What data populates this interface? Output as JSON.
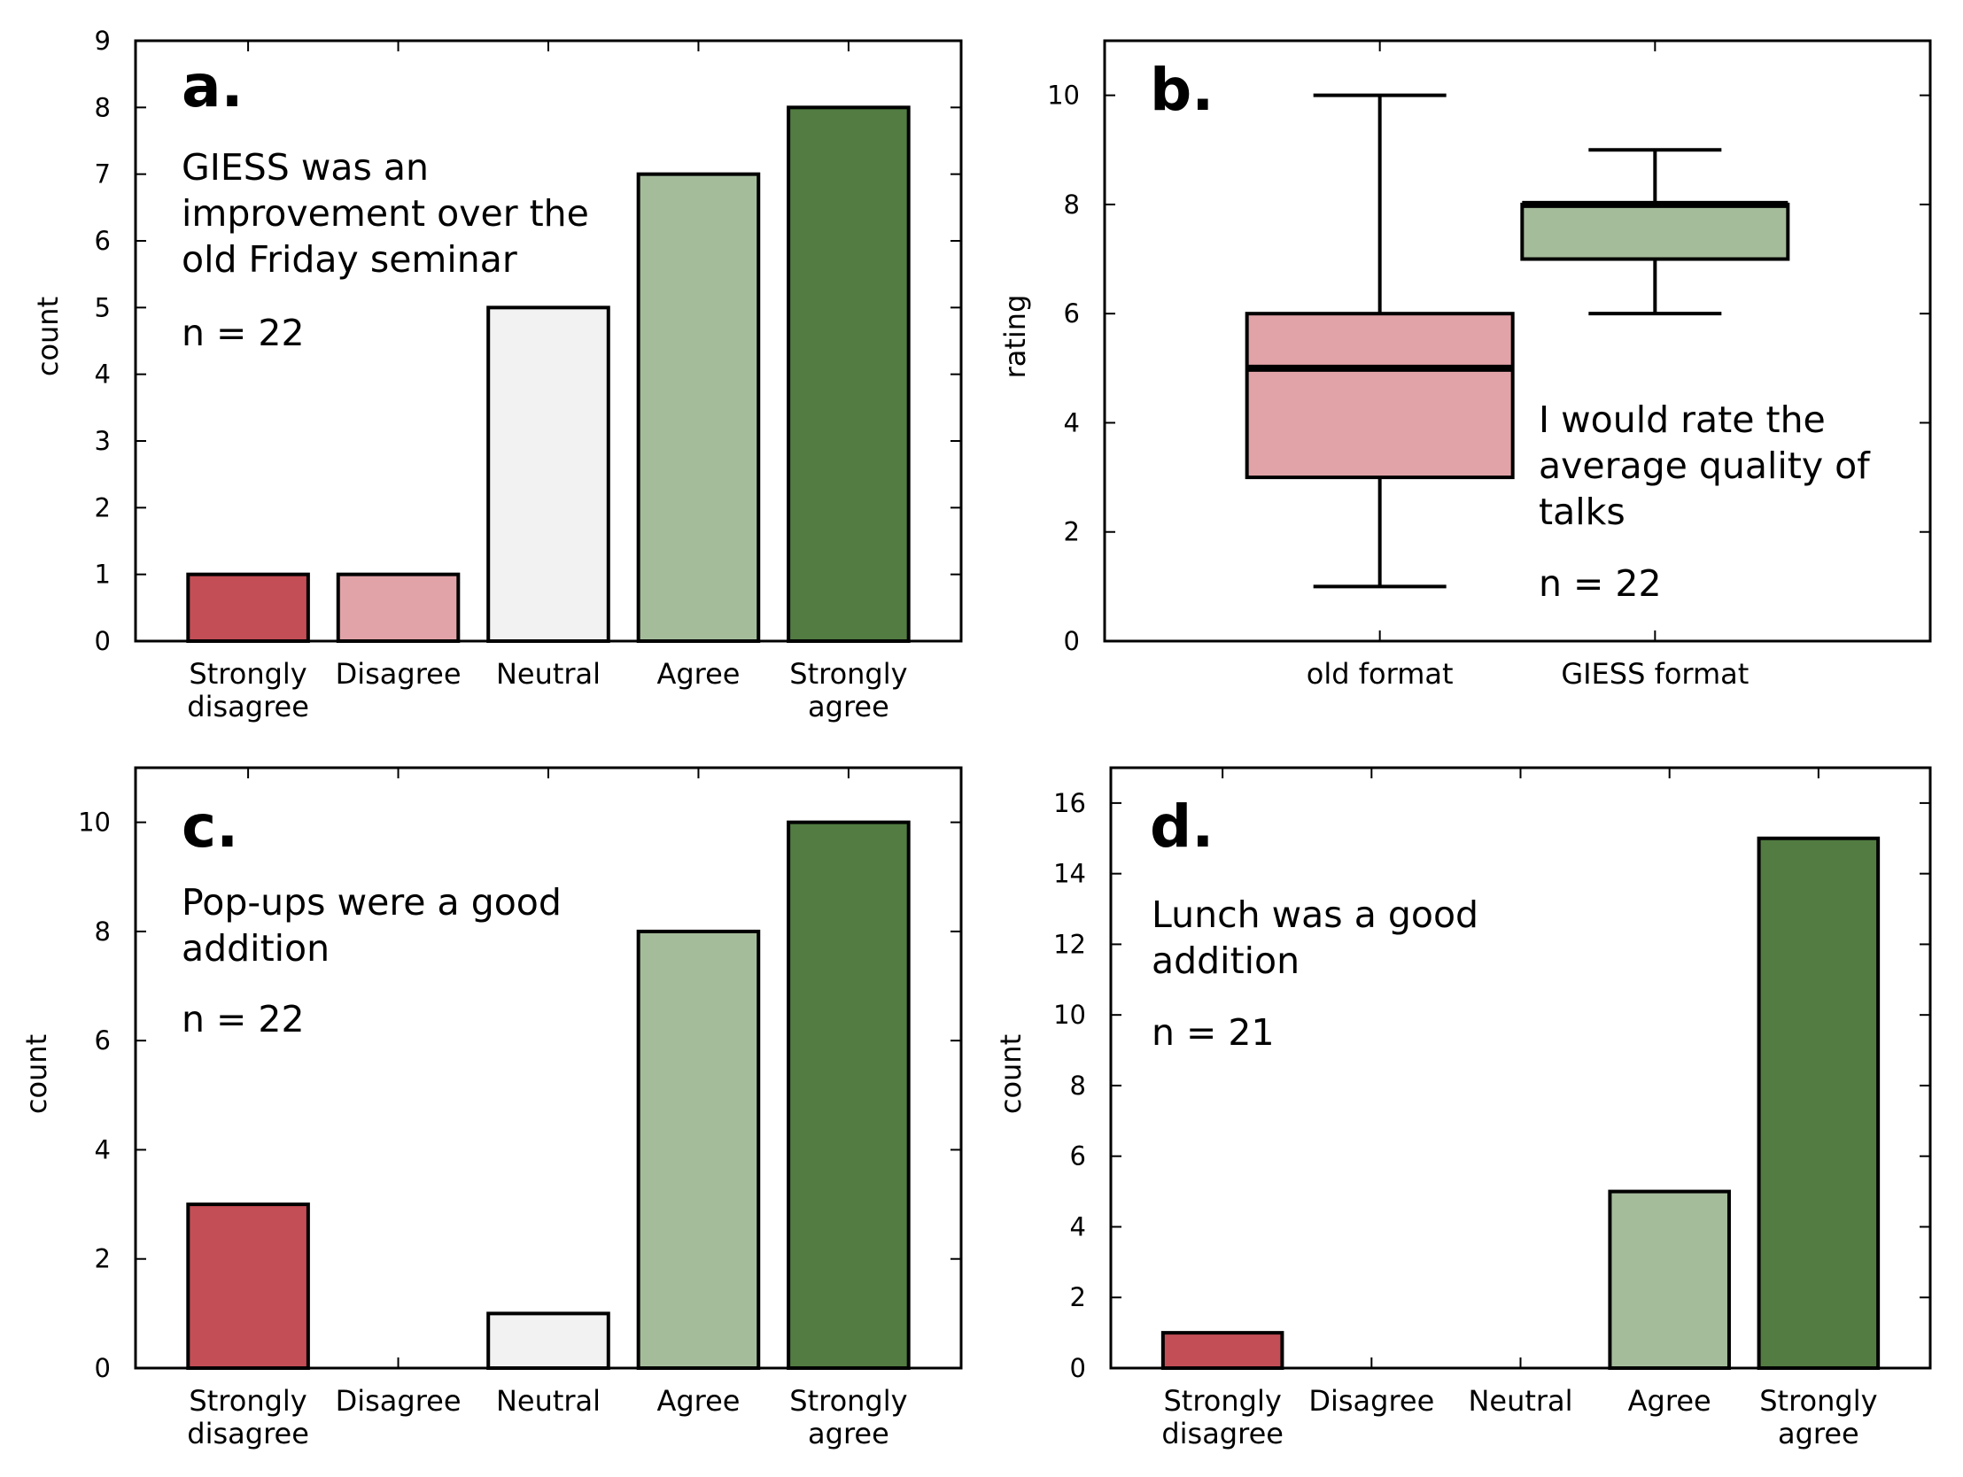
{
  "colors": {
    "strongly_disagree": "#c44e56",
    "disagree": "#e2a3a8",
    "neutral": "#f2f2f2",
    "agree": "#a5bc9b",
    "strongly_agree": "#527c42"
  },
  "chart_data": [
    {
      "id": "a",
      "type": "bar",
      "letter": "a.",
      "caption_lines": [
        "GIESS was an",
        "improvement over the",
        "old Friday seminar"
      ],
      "n_text": "n = 22",
      "categories": [
        "Strongly disagree",
        "Disagree",
        "Neutral",
        "Agree",
        "Strongly agree"
      ],
      "category_lines": [
        [
          "Strongly",
          "disagree"
        ],
        [
          "Disagree"
        ],
        [
          "Neutral"
        ],
        [
          "Agree"
        ],
        [
          "Strongly",
          "agree"
        ]
      ],
      "values": [
        1,
        1,
        5,
        7,
        8
      ],
      "ylabel": "count",
      "ylim": [
        0,
        9
      ],
      "yticks": [
        0,
        1,
        2,
        3,
        4,
        5,
        6,
        7,
        8,
        9
      ],
      "grid": false
    },
    {
      "id": "b",
      "type": "box",
      "letter": "b.",
      "caption_lines": [
        "I would rate the",
        "average quality of",
        "talks"
      ],
      "n_text": "n = 22",
      "categories": [
        "old format",
        "GIESS format"
      ],
      "boxes": [
        {
          "name": "old format",
          "whisker_low": 1,
          "q1": 3,
          "median": 5,
          "q3": 6,
          "whisker_high": 10,
          "color": "#e2a3a8"
        },
        {
          "name": "GIESS format",
          "whisker_low": 6,
          "q1": 7,
          "median": 8,
          "q3": 8,
          "whisker_high": 9,
          "color": "#a5bc9b"
        }
      ],
      "ylabel": "rating",
      "ylim": [
        0,
        11
      ],
      "yticks": [
        0,
        2,
        4,
        6,
        8,
        10
      ],
      "grid": false
    },
    {
      "id": "c",
      "type": "bar",
      "letter": "c.",
      "caption_lines": [
        "Pop-ups were a good",
        "addition"
      ],
      "n_text": "n = 22",
      "categories": [
        "Strongly disagree",
        "Disagree",
        "Neutral",
        "Agree",
        "Strongly agree"
      ],
      "category_lines": [
        [
          "Strongly",
          "disagree"
        ],
        [
          "Disagree"
        ],
        [
          "Neutral"
        ],
        [
          "Agree"
        ],
        [
          "Strongly",
          "agree"
        ]
      ],
      "values": [
        3,
        0,
        1,
        8,
        10
      ],
      "ylabel": "count",
      "ylim": [
        0,
        11
      ],
      "yticks": [
        0,
        2,
        4,
        6,
        8,
        10
      ],
      "grid": false
    },
    {
      "id": "d",
      "type": "bar",
      "letter": "d.",
      "caption_lines": [
        "Lunch was a good",
        "addition"
      ],
      "n_text": "n = 21",
      "categories": [
        "Strongly disagree",
        "Disagree",
        "Neutral",
        "Agree",
        "Strongly agree"
      ],
      "category_lines": [
        [
          "Strongly",
          "disagree"
        ],
        [
          "Disagree"
        ],
        [
          "Neutral"
        ],
        [
          "Agree"
        ],
        [
          "Strongly",
          "agree"
        ]
      ],
      "values": [
        1,
        0,
        0,
        5,
        15
      ],
      "ylabel": "count",
      "ylim": [
        0,
        17
      ],
      "yticks": [
        0,
        2,
        4,
        6,
        8,
        10,
        12,
        14,
        16
      ],
      "grid": false
    }
  ]
}
